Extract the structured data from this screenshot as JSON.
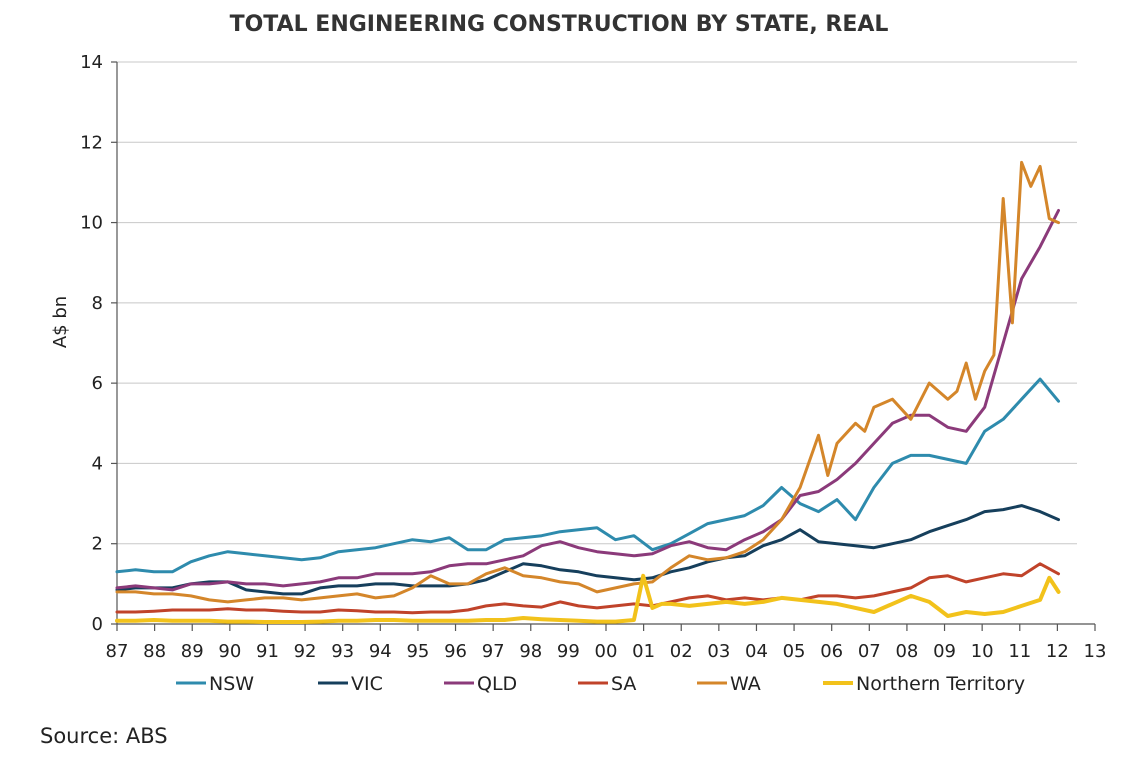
{
  "chart_data": {
    "type": "line",
    "title": "TOTAL ENGINEERING CONSTRUCTION BY STATE, REAL",
    "ylabel": "A$ bn",
    "xlabel": "",
    "ylim": [
      0,
      14
    ],
    "xlim": [
      1987,
      2013
    ],
    "yticks": [
      0,
      2,
      4,
      6,
      8,
      10,
      12,
      14
    ],
    "xticks": [
      "87",
      "88",
      "89",
      "90",
      "91",
      "92",
      "93",
      "94",
      "95",
      "96",
      "97",
      "98",
      "99",
      "00",
      "01",
      "02",
      "03",
      "04",
      "05",
      "06",
      "07",
      "08",
      "09",
      "10",
      "11",
      "12",
      "13"
    ],
    "grid": true,
    "legend_position": "bottom",
    "series": [
      {
        "name": "NSW",
        "color": "#2e8bad",
        "width": 3,
        "x": [
          1987,
          1987.5,
          1988,
          1988.5,
          1989,
          1989.5,
          1990,
          1990.5,
          1991,
          1991.5,
          1992,
          1992.5,
          1993,
          1993.5,
          1994,
          1994.5,
          1995,
          1995.5,
          1996,
          1996.5,
          1997,
          1997.5,
          1998,
          1998.5,
          1999,
          1999.5,
          2000,
          2000.5,
          2001,
          2001.5,
          2002,
          2002.5,
          2003,
          2003.5,
          2004,
          2004.5,
          2005,
          2005.5,
          2006,
          2006.5,
          2007,
          2007.5,
          2008,
          2008.5,
          2009,
          2009.5,
          2010,
          2010.5,
          2011,
          2011.5,
          2012,
          2012.5
        ],
        "y": [
          1.3,
          1.35,
          1.3,
          1.3,
          1.55,
          1.7,
          1.8,
          1.75,
          1.7,
          1.65,
          1.6,
          1.65,
          1.8,
          1.85,
          1.9,
          2.0,
          2.1,
          2.05,
          2.15,
          1.85,
          1.85,
          2.1,
          2.15,
          2.2,
          2.3,
          2.35,
          2.4,
          2.1,
          2.2,
          1.85,
          2.0,
          2.25,
          2.5,
          2.6,
          2.7,
          2.95,
          3.4,
          3.0,
          2.8,
          3.1,
          2.6,
          3.4,
          4.0,
          4.2,
          4.2,
          4.1,
          4.0,
          4.8,
          5.1,
          5.6,
          6.1,
          5.55
        ]
      },
      {
        "name": "VIC",
        "color": "#163f5c",
        "width": 3,
        "x": [
          1987,
          1987.5,
          1988,
          1988.5,
          1989,
          1989.5,
          1990,
          1990.5,
          1991,
          1991.5,
          1992,
          1992.5,
          1993,
          1993.5,
          1994,
          1994.5,
          1995,
          1995.5,
          1996,
          1996.5,
          1997,
          1997.5,
          1998,
          1998.5,
          1999,
          1999.5,
          2000,
          2000.5,
          2001,
          2001.5,
          2002,
          2002.5,
          2003,
          2003.5,
          2004,
          2004.5,
          2005,
          2005.5,
          2006,
          2006.5,
          2007,
          2007.5,
          2008,
          2008.5,
          2009,
          2009.5,
          2010,
          2010.5,
          2011,
          2011.5,
          2012,
          2012.5
        ],
        "y": [
          0.85,
          0.9,
          0.9,
          0.9,
          1.0,
          1.05,
          1.05,
          0.85,
          0.8,
          0.75,
          0.75,
          0.9,
          0.95,
          0.95,
          1.0,
          1.0,
          0.95,
          0.95,
          0.95,
          1.0,
          1.1,
          1.3,
          1.5,
          1.45,
          1.35,
          1.3,
          1.2,
          1.15,
          1.1,
          1.15,
          1.3,
          1.4,
          1.55,
          1.65,
          1.7,
          1.95,
          2.1,
          2.35,
          2.05,
          2.0,
          1.95,
          1.9,
          2.0,
          2.1,
          2.3,
          2.45,
          2.6,
          2.8,
          2.85,
          2.95,
          2.8,
          2.6
        ]
      },
      {
        "name": "QLD",
        "color": "#8b3a7a",
        "width": 3,
        "x": [
          1987,
          1987.5,
          1988,
          1988.5,
          1989,
          1989.5,
          1990,
          1990.5,
          1991,
          1991.5,
          1992,
          1992.5,
          1993,
          1993.5,
          1994,
          1994.5,
          1995,
          1995.5,
          1996,
          1996.5,
          1997,
          1997.5,
          1998,
          1998.5,
          1999,
          1999.5,
          2000,
          2000.5,
          2001,
          2001.5,
          2002,
          2002.5,
          2003,
          2003.5,
          2004,
          2004.5,
          2005,
          2005.5,
          2006,
          2006.5,
          2007,
          2007.5,
          2008,
          2008.5,
          2009,
          2009.5,
          2010,
          2010.5,
          2011,
          2011.5,
          2012,
          2012.5
        ],
        "y": [
          0.9,
          0.95,
          0.9,
          0.85,
          1.0,
          1.0,
          1.05,
          1.0,
          1.0,
          0.95,
          1.0,
          1.05,
          1.15,
          1.15,
          1.25,
          1.25,
          1.25,
          1.3,
          1.45,
          1.5,
          1.5,
          1.6,
          1.7,
          1.95,
          2.05,
          1.9,
          1.8,
          1.75,
          1.7,
          1.75,
          1.95,
          2.05,
          1.9,
          1.85,
          2.1,
          2.3,
          2.6,
          3.2,
          3.3,
          3.6,
          4.0,
          4.5,
          5.0,
          5.2,
          5.2,
          4.9,
          4.8,
          5.4,
          7.0,
          8.6,
          9.4,
          10.3
        ]
      },
      {
        "name": "SA",
        "color": "#c0432a",
        "width": 3,
        "x": [
          1987,
          1987.5,
          1988,
          1988.5,
          1989,
          1989.5,
          1990,
          1990.5,
          1991,
          1991.5,
          1992,
          1992.5,
          1993,
          1993.5,
          1994,
          1994.5,
          1995,
          1995.5,
          1996,
          1996.5,
          1997,
          1997.5,
          1998,
          1998.5,
          1999,
          1999.5,
          2000,
          2000.5,
          2001,
          2001.5,
          2002,
          2002.5,
          2003,
          2003.5,
          2004,
          2004.5,
          2005,
          2005.5,
          2006,
          2006.5,
          2007,
          2007.5,
          2008,
          2008.5,
          2009,
          2009.5,
          2010,
          2010.5,
          2011,
          2011.5,
          2012,
          2012.5
        ],
        "y": [
          0.3,
          0.3,
          0.32,
          0.35,
          0.35,
          0.35,
          0.38,
          0.35,
          0.35,
          0.32,
          0.3,
          0.3,
          0.35,
          0.33,
          0.3,
          0.3,
          0.28,
          0.3,
          0.3,
          0.35,
          0.45,
          0.5,
          0.45,
          0.42,
          0.55,
          0.45,
          0.4,
          0.45,
          0.5,
          0.45,
          0.55,
          0.65,
          0.7,
          0.6,
          0.65,
          0.6,
          0.65,
          0.6,
          0.7,
          0.7,
          0.65,
          0.7,
          0.8,
          0.9,
          1.15,
          1.2,
          1.05,
          1.15,
          1.25,
          1.2,
          1.5,
          1.25
        ]
      },
      {
        "name": "WA",
        "color": "#d4862a",
        "width": 3,
        "x": [
          1987,
          1987.5,
          1988,
          1988.5,
          1989,
          1989.5,
          1990,
          1990.5,
          1991,
          1991.5,
          1992,
          1992.5,
          1993,
          1993.5,
          1994,
          1994.5,
          1995,
          1995.5,
          1996,
          1996.5,
          1997,
          1997.5,
          1998,
          1998.5,
          1999,
          1999.5,
          2000,
          2000.5,
          2001,
          2001.5,
          2002,
          2002.5,
          2003,
          2003.5,
          2004,
          2004.5,
          2005,
          2005.5,
          2006,
          2006.25,
          2006.5,
          2007,
          2007.25,
          2007.5,
          2008,
          2008.5,
          2009,
          2009.5,
          2009.75,
          2010,
          2010.25,
          2010.5,
          2010.75,
          2011,
          2011.25,
          2011.5,
          2011.75,
          2012,
          2012.25,
          2012.5
        ],
        "y": [
          0.8,
          0.8,
          0.75,
          0.75,
          0.7,
          0.6,
          0.55,
          0.6,
          0.65,
          0.65,
          0.6,
          0.65,
          0.7,
          0.75,
          0.65,
          0.7,
          0.9,
          1.2,
          1.0,
          1.0,
          1.25,
          1.4,
          1.2,
          1.15,
          1.05,
          1.0,
          0.8,
          0.9,
          1.0,
          1.05,
          1.4,
          1.7,
          1.6,
          1.65,
          1.8,
          2.1,
          2.6,
          3.4,
          4.7,
          3.7,
          4.5,
          5.0,
          4.8,
          5.4,
          5.6,
          5.1,
          6.0,
          5.6,
          5.8,
          6.5,
          5.6,
          6.3,
          6.7,
          10.6,
          7.5,
          11.5,
          10.9,
          11.4,
          10.1,
          10.0
        ]
      },
      {
        "name": "Northern Territory",
        "color": "#f2c21b",
        "width": 4,
        "x": [
          1987,
          1987.5,
          1988,
          1988.5,
          1989,
          1989.5,
          1990,
          1990.5,
          1991,
          1991.5,
          1992,
          1992.5,
          1993,
          1993.5,
          1994,
          1994.5,
          1995,
          1995.5,
          1996,
          1996.5,
          1997,
          1997.5,
          1998,
          1998.5,
          1999,
          1999.5,
          2000,
          2000.5,
          2001,
          2001.25,
          2001.5,
          2001.75,
          2002,
          2002.5,
          2003,
          2003.5,
          2004,
          2004.5,
          2005,
          2005.5,
          2006,
          2006.5,
          2007,
          2007.5,
          2008,
          2008.5,
          2009,
          2009.5,
          2010,
          2010.5,
          2011,
          2011.5,
          2012,
          2012.25,
          2012.5
        ],
        "y": [
          0.08,
          0.08,
          0.1,
          0.08,
          0.08,
          0.08,
          0.06,
          0.06,
          0.05,
          0.05,
          0.05,
          0.06,
          0.08,
          0.08,
          0.1,
          0.1,
          0.08,
          0.08,
          0.08,
          0.08,
          0.1,
          0.1,
          0.15,
          0.12,
          0.1,
          0.08,
          0.06,
          0.06,
          0.1,
          1.2,
          0.4,
          0.5,
          0.5,
          0.45,
          0.5,
          0.55,
          0.5,
          0.55,
          0.65,
          0.6,
          0.55,
          0.5,
          0.4,
          0.3,
          0.5,
          0.7,
          0.55,
          0.2,
          0.3,
          0.25,
          0.3,
          0.45,
          0.6,
          1.15,
          0.8
        ]
      }
    ]
  },
  "source": "Source: ABS"
}
